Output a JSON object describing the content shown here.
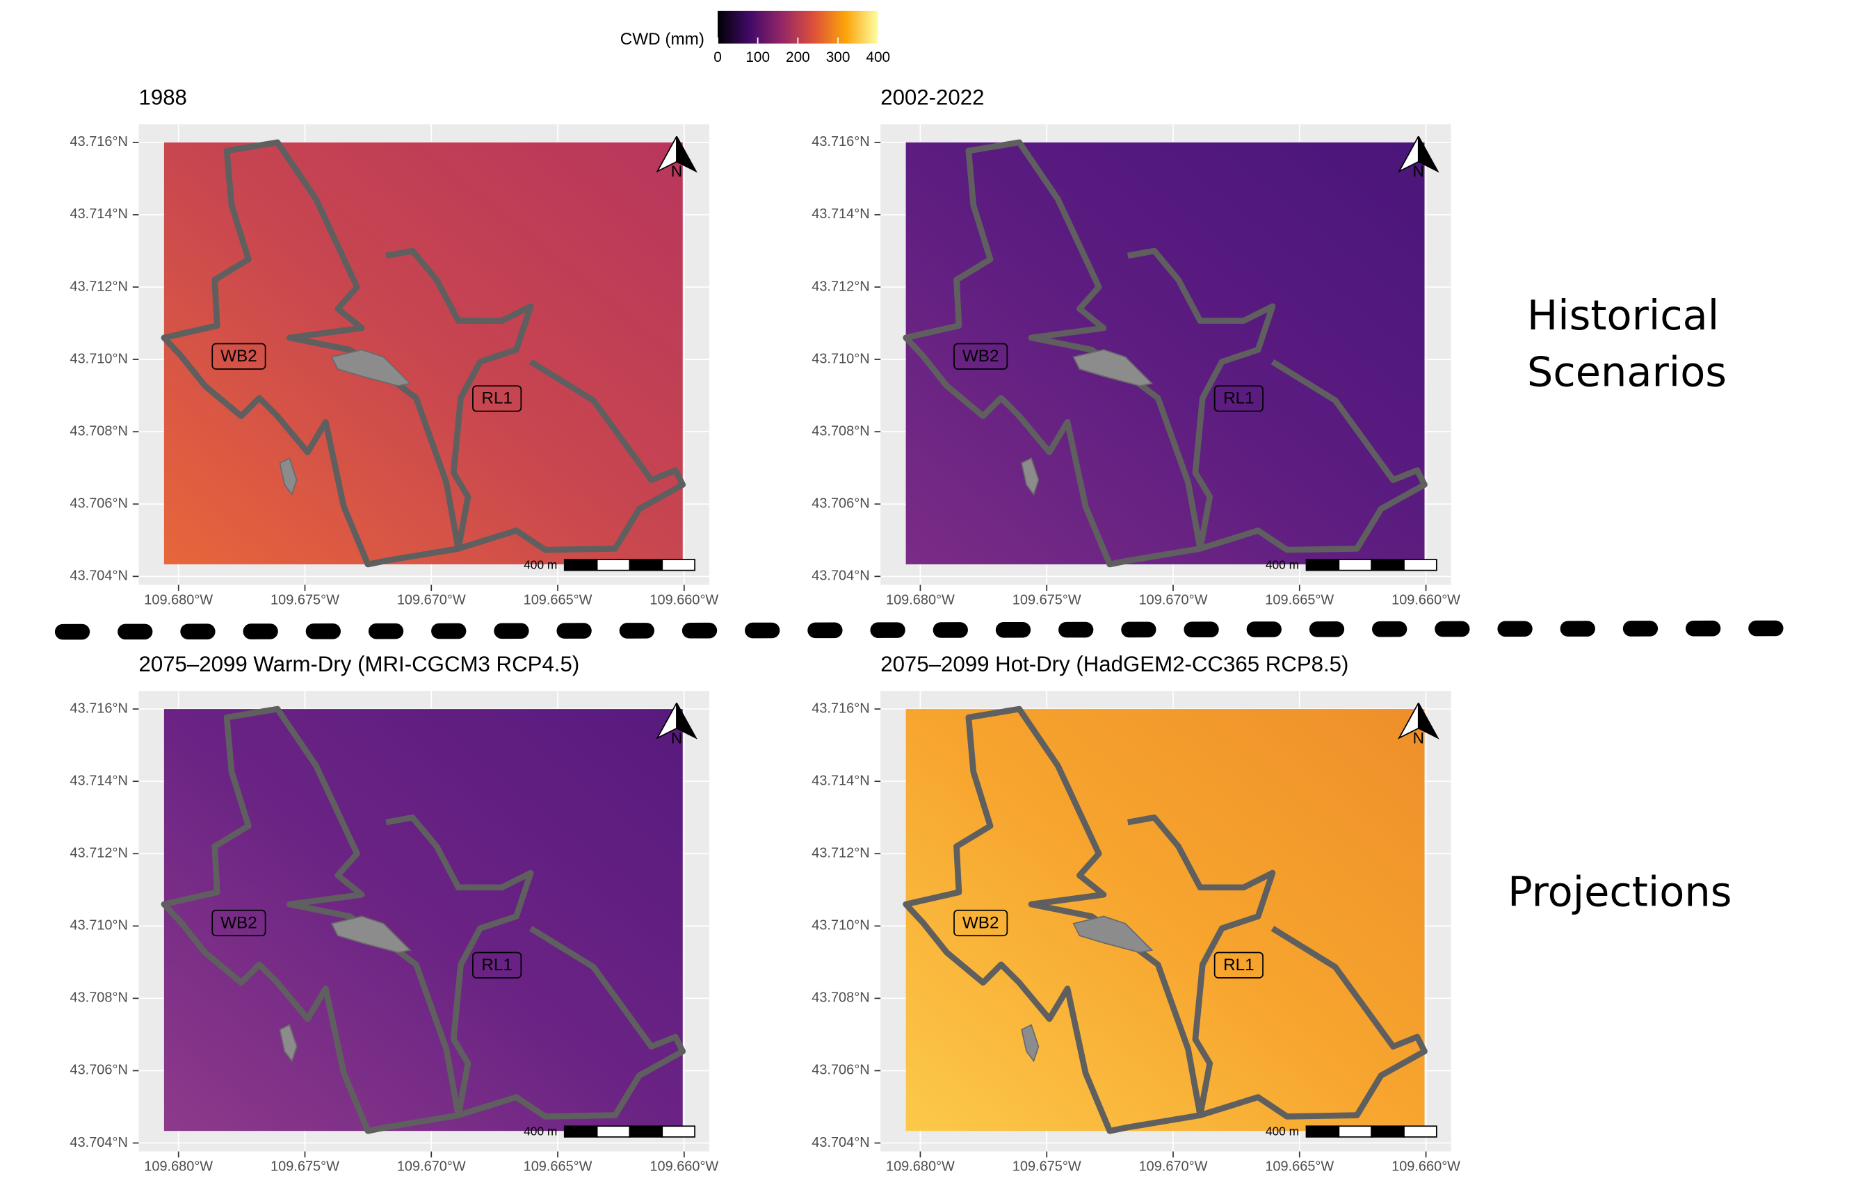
{
  "legend": {
    "title": "CWD (mm)",
    "ticks": [
      0,
      100,
      200,
      300,
      400
    ],
    "lim": [
      0,
      400
    ],
    "colors": [
      "#000004",
      "#420a68",
      "#932667",
      "#dd513a",
      "#fca50a",
      "#fcffa4"
    ]
  },
  "y_ticks": [
    "43.716°N",
    "43.714°N",
    "43.712°N",
    "43.710°N",
    "43.708°N",
    "43.706°N",
    "43.704°N"
  ],
  "x_ticks": [
    "109.680°W",
    "109.675°W",
    "109.670°W",
    "109.665°W",
    "109.660°W"
  ],
  "site_labels": [
    "WB2",
    "RL1"
  ],
  "scale_bar": "400 m",
  "north": "N",
  "panels": [
    {
      "title": "1988",
      "colors": [
        "#e8663a",
        "#c8464f",
        "#b8365c"
      ]
    },
    {
      "title": "2002-2022",
      "colors": [
        "#7a2c86",
        "#5c1c80",
        "#4a157a"
      ]
    },
    {
      "title": "2075–2099 Warm-Dry (MRI-CGCM3 RCP4.5)",
      "colors": [
        "#8d3a8a",
        "#6a2384",
        "#581a7e"
      ]
    },
    {
      "title": "2075–2099 Hot-Dry (HadGEM2-CC365 RCP8.5)",
      "colors": [
        "#fcc94a",
        "#f7a52e",
        "#ee8f2a"
      ]
    }
  ],
  "groups": [
    {
      "lines": [
        "Historical",
        "Scenarios"
      ]
    },
    {
      "lines": [
        "Projections"
      ]
    }
  ]
}
